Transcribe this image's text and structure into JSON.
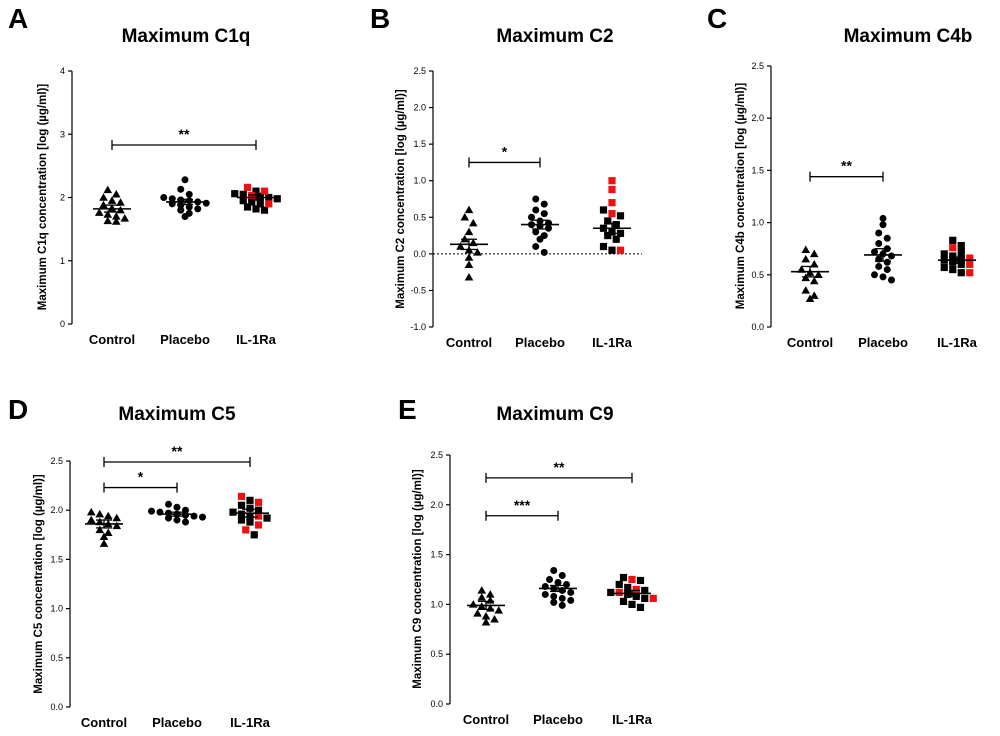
{
  "colors": {
    "default": "#000000",
    "highlight": "#ee1111"
  },
  "chart_data": [
    {
      "type": "scatter",
      "panel": "A",
      "title": "Maximum C1q",
      "ylabel": "Maximum C1q concentration [log (µg/ml)]",
      "categories": [
        "Control",
        "Placebo",
        "IL-1Ra"
      ],
      "ylim": [
        0,
        4
      ],
      "yticks": [
        "0",
        "1",
        "2",
        "3",
        "4"
      ],
      "zero_line": false,
      "groups": [
        {
          "category": "Control",
          "marker": "triangle",
          "values": [
            2.12,
            2.05,
            2.0,
            1.95,
            1.92,
            1.88,
            1.83,
            1.8,
            1.76,
            1.73,
            1.7,
            1.67,
            1.63,
            1.62
          ],
          "mean": 1.82,
          "sem_low": 1.77,
          "sem_high": 1.88
        },
        {
          "category": "Placebo",
          "marker": "circle",
          "values": [
            2.28,
            2.13,
            2.05,
            2.0,
            1.98,
            1.96,
            1.95,
            1.93,
            1.91,
            1.9,
            1.88,
            1.85,
            1.82,
            1.8,
            1.75,
            1.7
          ],
          "mean": 1.93,
          "sem_low": 1.89,
          "sem_high": 1.97
        },
        {
          "category": "IL-1Ra",
          "marker": "square",
          "values": [
            2.1,
            2.06,
            2.05,
            2.02,
            2.0,
            1.98,
            1.95,
            1.93,
            1.9,
            1.85,
            1.82,
            1.8
          ],
          "highlight_values": [
            2.16,
            2.1,
            2.03,
            1.9
          ],
          "mean": 2.0,
          "sem_low": 1.96,
          "sem_high": 2.04
        }
      ],
      "significance": [
        {
          "from": "Control",
          "to": "IL-1Ra",
          "y": 2.83,
          "label": "**"
        }
      ]
    },
    {
      "type": "scatter",
      "panel": "B",
      "title": "Maximum C2",
      "ylabel": "Maximum C2 concentration [log (µg/ml)]",
      "categories": [
        "Control",
        "Placebo",
        "IL-1Ra"
      ],
      "ylim": [
        -1,
        2.5
      ],
      "yticks": [
        "-1.0",
        "-0.5",
        "0.0",
        "0.5",
        "1.0",
        "1.5",
        "2.0",
        "2.5"
      ],
      "zero_line": true,
      "groups": [
        {
          "category": "Control",
          "marker": "triangle",
          "values": [
            0.6,
            0.5,
            0.42,
            0.3,
            0.2,
            0.15,
            0.1,
            0.05,
            0.02,
            -0.05,
            -0.15,
            -0.32
          ],
          "mean": 0.13,
          "sem_low": 0.06,
          "sem_high": 0.2
        },
        {
          "category": "Placebo",
          "marker": "circle",
          "values": [
            0.75,
            0.68,
            0.6,
            0.55,
            0.5,
            0.45,
            0.42,
            0.4,
            0.38,
            0.35,
            0.3,
            0.25,
            0.2,
            0.1,
            0.02
          ],
          "mean": 0.4,
          "sem_low": 0.34,
          "sem_high": 0.46
        },
        {
          "category": "IL-1Ra",
          "marker": "square",
          "values": [
            0.6,
            0.52,
            0.45,
            0.4,
            0.35,
            0.3,
            0.28,
            0.25,
            0.2,
            0.1,
            0.05
          ],
          "highlight_values": [
            1.0,
            0.88,
            0.7,
            0.55,
            0.05
          ],
          "mean": 0.35,
          "sem_low": 0.28,
          "sem_high": 0.42
        }
      ],
      "significance": [
        {
          "from": "Control",
          "to": "Placebo",
          "y": 1.25,
          "label": "*"
        }
      ]
    },
    {
      "type": "scatter",
      "panel": "C",
      "title": "Maximum C4b",
      "ylabel": "Maximum C4b concentration [log (µg/ml)]",
      "categories": [
        "Control",
        "Placebo",
        "IL-1Ra"
      ],
      "ylim": [
        0,
        2.5
      ],
      "yticks": [
        "0.0",
        "0.5",
        "1.0",
        "1.5",
        "2.0",
        "2.5"
      ],
      "zero_line": false,
      "groups": [
        {
          "category": "Control",
          "marker": "triangle",
          "values": [
            0.74,
            0.7,
            0.65,
            0.6,
            0.55,
            0.52,
            0.5,
            0.47,
            0.44,
            0.35,
            0.3,
            0.27
          ],
          "mean": 0.53,
          "sem_low": 0.48,
          "sem_high": 0.58
        },
        {
          "category": "Placebo",
          "marker": "circle",
          "values": [
            1.04,
            0.98,
            0.9,
            0.85,
            0.8,
            0.75,
            0.72,
            0.7,
            0.68,
            0.65,
            0.62,
            0.58,
            0.55,
            0.5,
            0.48,
            0.45
          ],
          "mean": 0.69,
          "sem_low": 0.63,
          "sem_high": 0.75
        },
        {
          "category": "IL-1Ra",
          "marker": "square",
          "values": [
            0.83,
            0.78,
            0.72,
            0.7,
            0.68,
            0.66,
            0.64,
            0.62,
            0.6,
            0.57,
            0.55,
            0.52
          ],
          "highlight_values": [
            0.76,
            0.66,
            0.6,
            0.52
          ],
          "mean": 0.64,
          "sem_low": 0.61,
          "sem_high": 0.67
        }
      ],
      "significance": [
        {
          "from": "Control",
          "to": "Placebo",
          "y": 1.44,
          "label": "**"
        }
      ]
    },
    {
      "type": "scatter",
      "panel": "D",
      "title": "Maximum C5",
      "ylabel": "Maximum C5 concentration [log (µg/ml)]",
      "categories": [
        "Control",
        "Placebo",
        "IL-1Ra"
      ],
      "ylim": [
        0,
        2.5
      ],
      "yticks": [
        "0.0",
        "0.5",
        "1.0",
        "1.5",
        "2.0",
        "2.5"
      ],
      "zero_line": false,
      "groups": [
        {
          "category": "Control",
          "marker": "triangle",
          "values": [
            1.98,
            1.96,
            1.94,
            1.92,
            1.9,
            1.88,
            1.86,
            1.84,
            1.8,
            1.77,
            1.73,
            1.66
          ],
          "mean": 1.86,
          "sem_low": 1.82,
          "sem_high": 1.9
        },
        {
          "category": "Placebo",
          "marker": "circle",
          "values": [
            2.06,
            2.03,
            2.0,
            1.99,
            1.98,
            1.97,
            1.96,
            1.95,
            1.94,
            1.93,
            1.92,
            1.9,
            1.88
          ],
          "mean": 1.96,
          "sem_low": 1.94,
          "sem_high": 1.98
        },
        {
          "category": "IL-1Ra",
          "marker": "square",
          "values": [
            2.1,
            2.05,
            2.02,
            2.0,
            1.98,
            1.96,
            1.94,
            1.92,
            1.9,
            1.88,
            1.75
          ],
          "highlight_values": [
            2.14,
            2.08,
            1.94,
            1.85,
            1.8
          ],
          "mean": 1.97,
          "sem_low": 1.93,
          "sem_high": 2.01
        }
      ],
      "significance": [
        {
          "from": "Control",
          "to": "Placebo",
          "y": 2.23,
          "label": "*"
        },
        {
          "from": "Control",
          "to": "IL-1Ra",
          "y": 2.49,
          "label": "**"
        }
      ]
    },
    {
      "type": "scatter",
      "panel": "E",
      "title": "Maximum C9",
      "ylabel": "Maximum C9 concentration [log (µg/ml)]",
      "categories": [
        "Control",
        "Placebo",
        "IL-1Ra"
      ],
      "ylim": [
        0,
        2.5
      ],
      "yticks": [
        "0.0",
        "0.5",
        "1.0",
        "1.5",
        "2.0",
        "2.5"
      ],
      "zero_line": false,
      "groups": [
        {
          "category": "Control",
          "marker": "triangle",
          "values": [
            1.14,
            1.1,
            1.07,
            1.04,
            1.0,
            0.98,
            0.96,
            0.94,
            0.91,
            0.88,
            0.85,
            0.82
          ],
          "mean": 0.99,
          "sem_low": 0.95,
          "sem_high": 1.03
        },
        {
          "category": "Placebo",
          "marker": "circle",
          "values": [
            1.34,
            1.29,
            1.25,
            1.22,
            1.2,
            1.18,
            1.16,
            1.14,
            1.12,
            1.1,
            1.08,
            1.06,
            1.04,
            1.02,
            0.99
          ],
          "mean": 1.16,
          "sem_low": 1.13,
          "sem_high": 1.19
        },
        {
          "category": "IL-1Ra",
          "marker": "square",
          "values": [
            1.27,
            1.24,
            1.2,
            1.17,
            1.14,
            1.12,
            1.1,
            1.08,
            1.06,
            1.03,
            1.0,
            0.97
          ],
          "highlight_values": [
            1.25,
            1.15,
            1.12,
            1.06
          ],
          "mean": 1.11,
          "sem_low": 1.08,
          "sem_high": 1.14
        }
      ],
      "significance": [
        {
          "from": "Control",
          "to": "Placebo",
          "y": 1.89,
          "label": "***"
        },
        {
          "from": "Control",
          "to": "IL-1Ra",
          "y": 2.27,
          "label": "**"
        }
      ]
    }
  ]
}
